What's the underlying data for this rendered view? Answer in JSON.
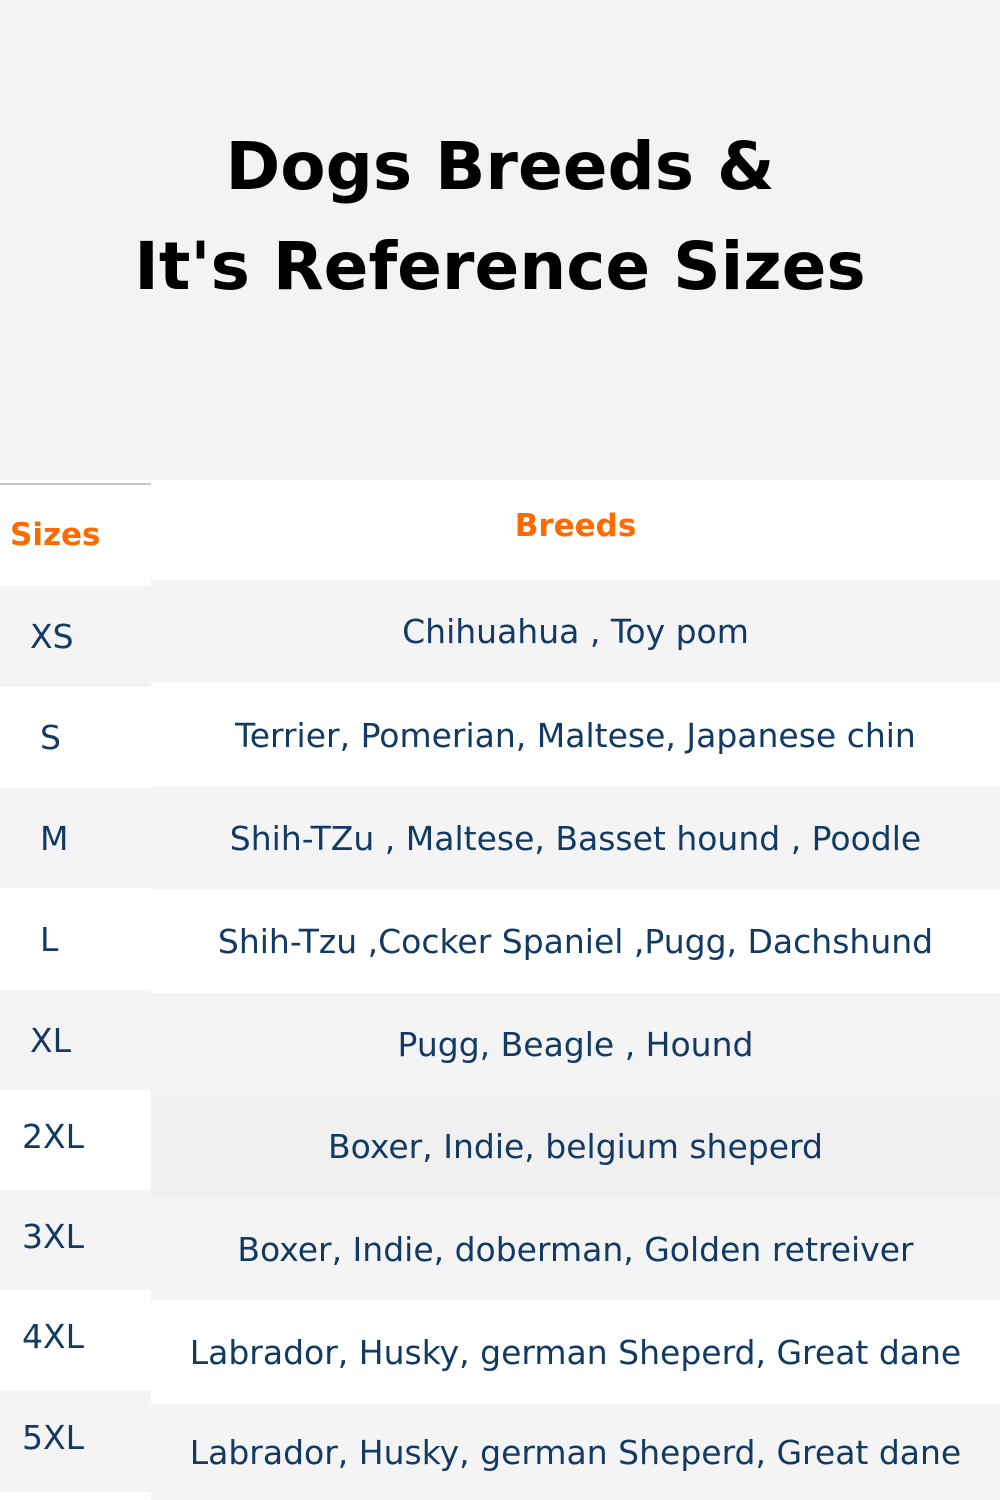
{
  "title": {
    "line1": "Dogs Breeds &",
    "line2": "It's Reference Sizes"
  },
  "table": {
    "headers": {
      "sizes": "Sizes",
      "breeds": "Breeds"
    },
    "rows": [
      {
        "size": "XS",
        "breeds": "Chihuahua , Toy pom"
      },
      {
        "size": "S",
        "breeds": "Terrier, Pomerian, Maltese, Japanese chin"
      },
      {
        "size": "M",
        "breeds": "Shih-TZu , Maltese, Basset hound , Poodle"
      },
      {
        "size": "L",
        "breeds": "Shih-Tzu ,Cocker Spaniel ,Pugg, Dachshund"
      },
      {
        "size": "XL",
        "breeds": "Pugg, Beagle , Hound"
      },
      {
        "size": "2XL",
        "breeds": "Boxer, Indie, belgium sheperd"
      },
      {
        "size": "3XL",
        "breeds": "Boxer, Indie, doberman, Golden retreiver"
      },
      {
        "size": "4XL",
        "breeds": "Labrador, Husky, german Sheperd, Great dane"
      },
      {
        "size": "5XL",
        "breeds": "Labrador, Husky, german Sheperd, Great dane"
      }
    ]
  },
  "colors": {
    "header_text": "#ff6a00",
    "body_text": "#123a63",
    "background": "#f3f3f3"
  }
}
